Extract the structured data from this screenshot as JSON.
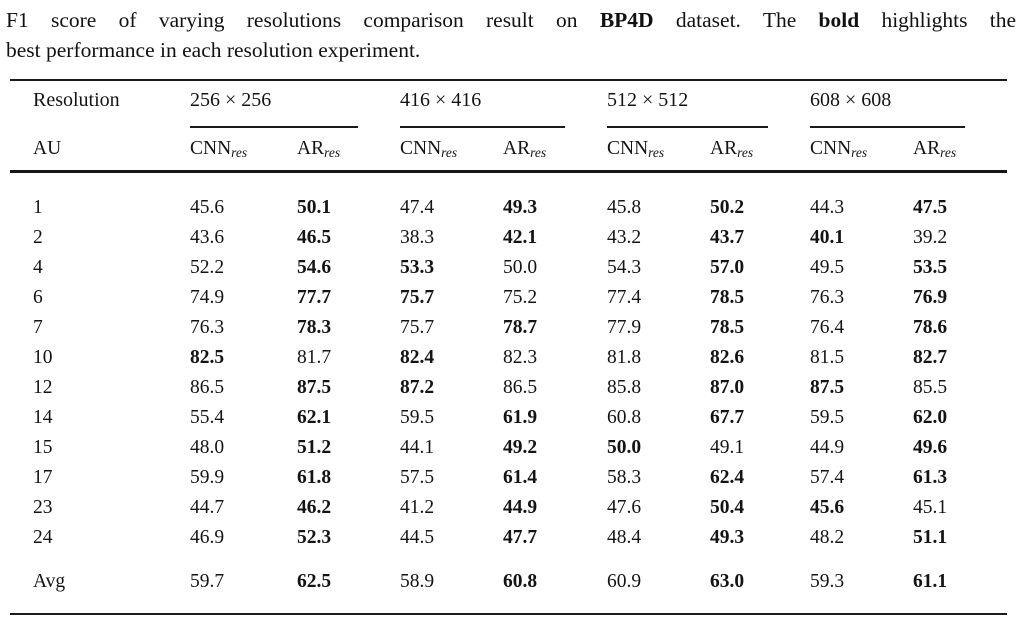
{
  "caption": {
    "line1_parts": [
      "F1 score of varying resolutions comparison result on ",
      "BP4D",
      " dataset. The ",
      "bold",
      " highlights the"
    ],
    "line2": "best performance in each resolution experiment."
  },
  "table": {
    "corner_label": "Resolution",
    "row_axis_label": "AU",
    "groups": [
      {
        "label": "256 × 256",
        "cols": [
          {
            "main": "CNN",
            "sub": "res"
          },
          {
            "main": "AR",
            "sub": "res"
          }
        ]
      },
      {
        "label": "416 × 416",
        "cols": [
          {
            "main": "CNN",
            "sub": "res"
          },
          {
            "main": "AR",
            "sub": "res"
          }
        ]
      },
      {
        "label": "512 × 512",
        "cols": [
          {
            "main": "CNN",
            "sub": "res"
          },
          {
            "main": "AR",
            "sub": "res"
          }
        ]
      },
      {
        "label": "608 × 608",
        "cols": [
          {
            "main": "CNN",
            "sub": "res"
          },
          {
            "main": "AR",
            "sub": "res"
          }
        ]
      }
    ],
    "rows": [
      {
        "au": "1",
        "values": [
          "45.6",
          "50.1",
          "47.4",
          "49.3",
          "45.8",
          "50.2",
          "44.3",
          "47.5"
        ],
        "bold": [
          false,
          true,
          false,
          true,
          false,
          true,
          false,
          true
        ]
      },
      {
        "au": "2",
        "values": [
          "43.6",
          "46.5",
          "38.3",
          "42.1",
          "43.2",
          "43.7",
          "40.1",
          "39.2"
        ],
        "bold": [
          false,
          true,
          false,
          true,
          false,
          true,
          true,
          false
        ]
      },
      {
        "au": "4",
        "values": [
          "52.2",
          "54.6",
          "53.3",
          "50.0",
          "54.3",
          "57.0",
          "49.5",
          "53.5"
        ],
        "bold": [
          false,
          true,
          true,
          false,
          false,
          true,
          false,
          true
        ]
      },
      {
        "au": "6",
        "values": [
          "74.9",
          "77.7",
          "75.7",
          "75.2",
          "77.4",
          "78.5",
          "76.3",
          "76.9"
        ],
        "bold": [
          false,
          true,
          true,
          false,
          false,
          true,
          false,
          true
        ]
      },
      {
        "au": "7",
        "values": [
          "76.3",
          "78.3",
          "75.7",
          "78.7",
          "77.9",
          "78.5",
          "76.4",
          "78.6"
        ],
        "bold": [
          false,
          true,
          false,
          true,
          false,
          true,
          false,
          true
        ]
      },
      {
        "au": "10",
        "values": [
          "82.5",
          "81.7",
          "82.4",
          "82.3",
          "81.8",
          "82.6",
          "81.5",
          "82.7"
        ],
        "bold": [
          true,
          false,
          true,
          false,
          false,
          true,
          false,
          true
        ]
      },
      {
        "au": "12",
        "values": [
          "86.5",
          "87.5",
          "87.2",
          "86.5",
          "85.8",
          "87.0",
          "87.5",
          "85.5"
        ],
        "bold": [
          false,
          true,
          true,
          false,
          false,
          true,
          true,
          false
        ]
      },
      {
        "au": "14",
        "values": [
          "55.4",
          "62.1",
          "59.5",
          "61.9",
          "60.8",
          "67.7",
          "59.5",
          "62.0"
        ],
        "bold": [
          false,
          true,
          false,
          true,
          false,
          true,
          false,
          true
        ]
      },
      {
        "au": "15",
        "values": [
          "48.0",
          "51.2",
          "44.1",
          "49.2",
          "50.0",
          "49.1",
          "44.9",
          "49.6"
        ],
        "bold": [
          false,
          true,
          false,
          true,
          true,
          false,
          false,
          true
        ]
      },
      {
        "au": "17",
        "values": [
          "59.9",
          "61.8",
          "57.5",
          "61.4",
          "58.3",
          "62.4",
          "57.4",
          "61.3"
        ],
        "bold": [
          false,
          true,
          false,
          true,
          false,
          true,
          false,
          true
        ]
      },
      {
        "au": "23",
        "values": [
          "44.7",
          "46.2",
          "41.2",
          "44.9",
          "47.6",
          "50.4",
          "45.6",
          "45.1"
        ],
        "bold": [
          false,
          true,
          false,
          true,
          false,
          true,
          true,
          false
        ]
      },
      {
        "au": "24",
        "values": [
          "46.9",
          "52.3",
          "44.5",
          "47.7",
          "48.4",
          "49.3",
          "48.2",
          "51.1"
        ],
        "bold": [
          false,
          true,
          false,
          true,
          false,
          true,
          false,
          true
        ]
      },
      {
        "au": "Avg",
        "values": [
          "59.7",
          "62.5",
          "58.9",
          "60.8",
          "60.9",
          "63.0",
          "59.3",
          "61.1"
        ],
        "bold": [
          false,
          true,
          false,
          true,
          false,
          true,
          false,
          true
        ],
        "is_avg": true
      }
    ]
  },
  "colors": {
    "text": "#141414",
    "rule": "#1b1b1b",
    "background": "#ffffff"
  }
}
